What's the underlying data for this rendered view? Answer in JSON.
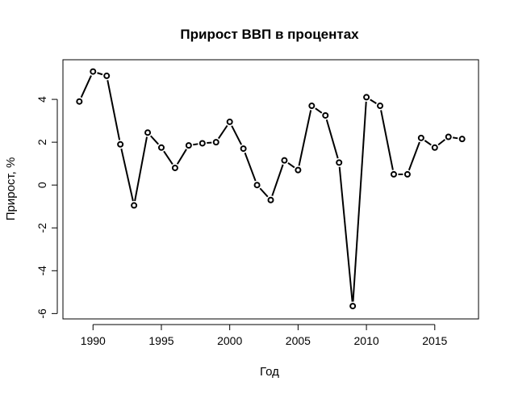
{
  "chart_data": {
    "type": "line",
    "title": "Прирост ВВП в процентах",
    "xlabel": "Год",
    "ylabel": "Прирост, %",
    "x": [
      1989,
      1990,
      1991,
      1992,
      1993,
      1994,
      1995,
      1996,
      1997,
      1998,
      1999,
      2000,
      2001,
      2002,
      2003,
      2004,
      2005,
      2006,
      2007,
      2008,
      2009,
      2010,
      2011,
      2012,
      2013,
      2014,
      2015,
      2016,
      2017
    ],
    "series": [
      {
        "values": [
          3.9,
          5.3,
          5.1,
          1.9,
          -0.95,
          2.45,
          1.75,
          0.8,
          1.85,
          1.95,
          2.0,
          2.95,
          1.7,
          0.0,
          -0.7,
          1.15,
          0.7,
          3.7,
          3.25,
          1.05,
          -5.65,
          4.1,
          3.7,
          0.5,
          0.5,
          2.2,
          1.75,
          2.25,
          2.15
        ]
      }
    ],
    "xlim": [
      1987.8,
      2018.2
    ],
    "ylim": [
      -6.25,
      5.85
    ],
    "xticks": [
      1990,
      1995,
      2000,
      2005,
      2010,
      2015
    ],
    "yticks": [
      -6,
      -4,
      -2,
      0,
      2,
      4
    ],
    "grid": false,
    "marker": "open-circle",
    "line_color": "#000000"
  }
}
